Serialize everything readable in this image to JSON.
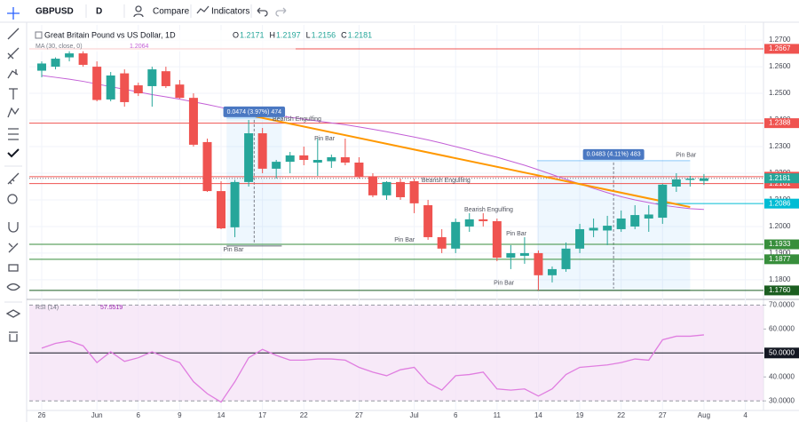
{
  "toolbar": {
    "symbol": "GBPUSD",
    "interval": "D",
    "compare": "Compare",
    "indicators": "Indicators"
  },
  "chart_data": [
    {
      "type": "candlestick",
      "title": "Great Britain Pound vs US Dollar, 1D",
      "ohlc_keys": [
        "O",
        "H",
        "L",
        "C"
      ],
      "categories": [
        "26",
        null,
        null,
        null,
        "Jun",
        null,
        null,
        "6",
        null,
        null,
        "9",
        null,
        null,
        "14",
        null,
        null,
        "17",
        null,
        null,
        "22",
        null,
        null,
        null,
        "27",
        null,
        null,
        null,
        "Jul",
        null,
        null,
        "6",
        null,
        null,
        "11",
        null,
        null,
        "14",
        null,
        null,
        "19",
        null,
        null,
        "22",
        null,
        null,
        "27",
        null,
        null,
        "Aug",
        null,
        null,
        "4"
      ],
      "open": [
        1.2585,
        1.26,
        1.2635,
        1.265,
        1.26,
        1.2477,
        1.2575,
        1.253,
        1.2527,
        1.2583,
        1.2533,
        1.2483,
        1.2317,
        1.2133,
        1.1997,
        1.2167,
        1.235,
        1.2217,
        1.2243,
        1.2267,
        1.224,
        1.2245,
        1.226,
        1.224,
        1.2187,
        1.2117,
        1.2167,
        1.217,
        1.208,
        1.196,
        1.1917,
        1.2,
        1.2027,
        1.202,
        1.1883,
        1.189,
        1.19,
        1.1817,
        1.184,
        1.1917,
        1.1985,
        1.1985,
        1.199,
        1.2,
        1.203,
        1.2033,
        1.215,
        1.2175,
        1.2171,
        null,
        null,
        null
      ],
      "high": [
        1.262,
        1.2635,
        1.266,
        1.266,
        1.262,
        1.258,
        1.259,
        1.254,
        1.26,
        1.26,
        1.255,
        1.25,
        1.233,
        1.217,
        1.2175,
        1.24,
        1.237,
        1.225,
        1.228,
        1.23,
        1.233,
        1.227,
        1.233,
        1.226,
        1.22,
        1.217,
        1.218,
        1.218,
        1.21,
        1.199,
        1.203,
        1.205,
        1.205,
        1.203,
        1.193,
        1.196,
        1.191,
        1.185,
        1.194,
        1.201,
        1.203,
        1.204,
        1.206,
        1.208,
        1.208,
        1.216,
        1.22,
        1.219,
        1.2197,
        null,
        null,
        null
      ],
      "low": [
        1.256,
        1.259,
        1.262,
        1.26,
        1.247,
        1.247,
        1.245,
        1.249,
        1.245,
        1.252,
        1.248,
        1.23,
        1.213,
        1.199,
        1.196,
        1.215,
        1.22,
        1.218,
        1.22,
        1.223,
        1.219,
        1.222,
        1.223,
        1.218,
        1.211,
        1.21,
        1.21,
        1.205,
        1.195,
        1.19,
        1.19,
        1.198,
        1.2,
        1.187,
        1.184,
        1.186,
        1.176,
        1.179,
        1.183,
        1.19,
        1.196,
        1.193,
        1.198,
        1.199,
        1.198,
        1.201,
        1.213,
        1.215,
        1.2156,
        null,
        null,
        null
      ],
      "close": [
        1.2612,
        1.263,
        1.265,
        1.2607,
        1.2475,
        1.2567,
        1.2467,
        1.25,
        1.259,
        1.2527,
        1.2483,
        1.2307,
        1.2133,
        1.1993,
        1.2167,
        1.235,
        1.2217,
        1.2243,
        1.2267,
        1.225,
        1.225,
        1.226,
        1.224,
        1.2187,
        1.2117,
        1.2167,
        1.211,
        1.2087,
        1.196,
        1.1917,
        1.2017,
        1.2027,
        1.202,
        1.1883,
        1.19,
        1.19,
        1.1817,
        1.184,
        1.1917,
        1.199,
        1.1995,
        1.2003,
        1.203,
        1.2043,
        1.2045,
        1.2157,
        1.2177,
        1.218,
        1.2181,
        null,
        null,
        null
      ],
      "up_color": "#26a69a",
      "down_color": "#ef5350",
      "ylim": [
        1.1733,
        1.2757
      ],
      "yticks": [
        {
          "value": 1.27,
          "label": "1.2700"
        },
        {
          "value": 1.26,
          "label": "1.2600"
        },
        {
          "value": 1.25,
          "label": "1.2500"
        },
        {
          "value": 1.24,
          "label": "1.2400"
        },
        {
          "value": 1.23,
          "label": "1.2300"
        },
        {
          "value": 1.22,
          "label": "1.2200"
        },
        {
          "value": 1.21,
          "label": "1.2100"
        },
        {
          "value": 1.2,
          "label": "1.2000"
        },
        {
          "value": 1.19,
          "label": "1.1900"
        },
        {
          "value": 1.18,
          "label": "1.1800"
        }
      ],
      "overlay": {
        "name": "MA (30, close, 0)",
        "color": "#c35fd6",
        "values": [
          1.2567,
          1.256,
          1.2553,
          1.2545,
          1.2535,
          1.2525,
          1.2515,
          1.2505,
          1.2495,
          1.2487,
          1.2478,
          1.2468,
          1.2458,
          1.2447,
          1.2438,
          1.243,
          1.2423,
          1.2417,
          1.241,
          1.2403,
          1.2396,
          1.2389,
          1.2382,
          1.2374,
          1.2365,
          1.2356,
          1.2346,
          1.2336,
          1.2325,
          1.2313,
          1.23,
          1.2287,
          1.2273,
          1.226,
          1.2245,
          1.223,
          1.2213,
          1.2195,
          1.2177,
          1.216,
          1.2143,
          1.2127,
          1.2112,
          1.21,
          1.209,
          1.208,
          1.2073,
          1.2067,
          1.2064,
          null,
          null,
          null
        ]
      },
      "levels": [
        {
          "value": 1.2667,
          "color": "#ef5350"
        },
        {
          "value": 1.2388,
          "color": "#ef5350"
        },
        {
          "value": 1.2187,
          "color": "#ef5350"
        },
        {
          "value": 1.2161,
          "color": "#ef5350"
        },
        {
          "value": 1.2086,
          "color": "#00bcd4",
          "from_index": 44.5
        },
        {
          "value": 1.1933,
          "color": "#388e3c"
        },
        {
          "value": 1.1877,
          "color": "#388e3c"
        },
        {
          "value": {
            "value": 1.176,
            "label": "1.1760"
          },
          "color": "#1b5e20"
        }
      ],
      "trendline": {
        "color": "#ff9800",
        "start": [
          15.5,
          1.2413
        ],
        "end": [
          47,
          1.2073
        ]
      },
      "measures": [
        {
          "label": "0.0474 (3.97%) 474",
          "from_index": 13.4,
          "to_index": 17.4,
          "low": 1.1927,
          "high": 1.2407
        },
        {
          "label": "0.0483 (4.11%) 483",
          "from_index": 35.9,
          "to_index": 47,
          "low": 1.176,
          "high": 1.2247
        }
      ],
      "patterns": [
        {
          "text": "Bearish Engulfing",
          "index": 18.5,
          "price": 1.2403
        },
        {
          "text": "Pin Bar",
          "index": 20.5,
          "price": 1.233
        },
        {
          "text": "Pin Bar",
          "index": 13.9,
          "price": 1.1913
        },
        {
          "text": "Bearish Engulfing",
          "index": 29.3,
          "price": 1.2173
        },
        {
          "text": "Pin Bar",
          "index": 26.3,
          "price": 1.195
        },
        {
          "text": "Bearish Engulfing",
          "index": 32.4,
          "price": 1.2063
        },
        {
          "text": "Pin Bar",
          "index": 34.4,
          "price": 1.1973
        },
        {
          "text": "Pin Bar",
          "index": 33.5,
          "price": 1.1787
        },
        {
          "text": "Pin Bar",
          "index": 46.7,
          "price": 1.2267
        }
      ]
    },
    {
      "type": "line",
      "title": "RSI (14)",
      "color": "#e07ee0",
      "band": [
        30,
        70
      ],
      "midline": 50,
      "values": [
        52.0,
        54,
        55,
        53,
        46,
        50.5,
        46.5,
        48,
        50.5,
        48,
        46,
        38,
        33,
        29.5,
        38,
        48,
        51.5,
        49,
        47,
        47,
        47.5,
        47.5,
        47,
        44,
        42,
        40.5,
        43,
        44,
        37.5,
        34.5,
        40.5,
        41,
        42,
        35,
        34.5,
        35,
        32,
        35,
        41,
        44,
        44.5,
        45,
        46,
        47.5,
        47,
        55.5,
        57,
        57,
        57.5519,
        null,
        null,
        null
      ],
      "ylim": [
        26,
        72
      ],
      "yticks": [
        {
          "value": 70,
          "label": "70.0000"
        },
        {
          "value": 60,
          "label": "60.0000"
        },
        {
          "value": 50,
          "label": "50.0000"
        },
        {
          "value": 40,
          "label": "40.0000"
        },
        {
          "value": 30,
          "label": "30.0000"
        }
      ]
    }
  ]
}
